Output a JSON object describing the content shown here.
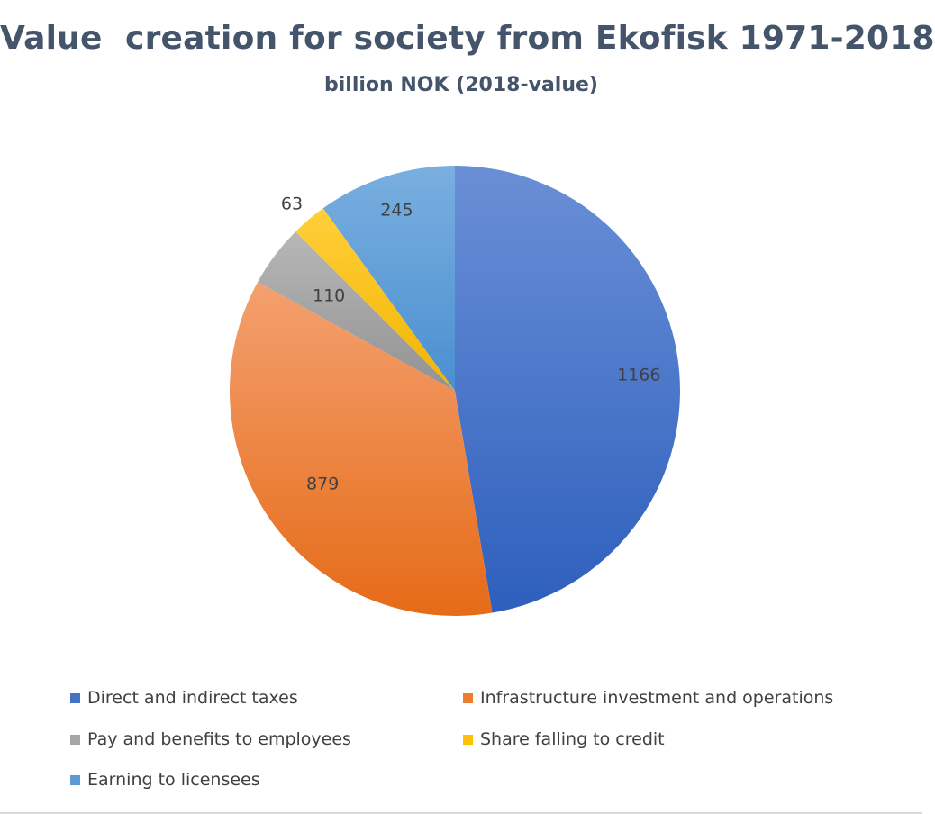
{
  "chart_data": {
    "type": "pie",
    "title": "Value  creation for society from Ekofisk 1971-2018",
    "subtitle": "billion NOK (2018-value)",
    "series": [
      {
        "name": "",
        "categories": [
          "Direct and indirect taxes",
          "Infrastructure investment and operations",
          "Pay and benefits to employees",
          "Share falling to credit",
          "Earning to licensees"
        ],
        "values": [
          1166,
          879,
          110,
          63,
          245
        ],
        "colors": [
          "#4472c4",
          "#ed7d31",
          "#a5a5a5",
          "#ffc000",
          "#5b9bd5"
        ]
      }
    ],
    "legend_position": "bottom",
    "data_labels": [
      "1166",
      "879",
      "110",
      "63",
      "245"
    ]
  }
}
